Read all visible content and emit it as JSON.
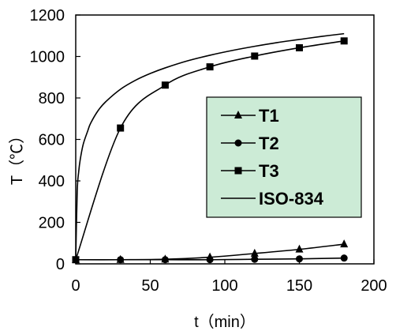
{
  "chart_data": {
    "type": "line",
    "xlabel": "t（min）",
    "ylabel": "T（℃）",
    "xlim": [
      0,
      200
    ],
    "ylim": [
      0,
      1200
    ],
    "x_ticks": [
      "0",
      "50",
      "100",
      "150",
      "200"
    ],
    "y_ticks": [
      "0",
      "200",
      "400",
      "600",
      "800",
      "1000",
      "1200"
    ],
    "grid": false,
    "legend_position": "center-right",
    "legend_background": "#ccebd6",
    "series": [
      {
        "name": "T1",
        "marker": "triangle",
        "x": [
          0,
          30,
          60,
          90,
          120,
          150,
          180
        ],
        "values": [
          20,
          20,
          22,
          32,
          50,
          70,
          95
        ]
      },
      {
        "name": "T2",
        "marker": "circle",
        "x": [
          0,
          30,
          60,
          90,
          120,
          150,
          180
        ],
        "values": [
          20,
          20,
          20,
          20,
          22,
          24,
          28
        ]
      },
      {
        "name": "T3",
        "marker": "square",
        "x": [
          0,
          30,
          60,
          90,
          120,
          150,
          180
        ],
        "values": [
          20,
          655,
          862,
          950,
          1002,
          1042,
          1075
        ]
      },
      {
        "name": "ISO-834",
        "marker": "none",
        "x": [
          0,
          1,
          2,
          3,
          5,
          8,
          10,
          15,
          20,
          30,
          40,
          50,
          60,
          75,
          90,
          105,
          120,
          135,
          150,
          165,
          180
        ],
        "values": [
          20,
          349,
          445,
          502,
          576,
          640,
          678,
          739,
          781,
          842,
          885,
          918,
          945,
          979,
          1006,
          1029,
          1049,
          1067,
          1082,
          1097,
          1110
        ]
      }
    ]
  }
}
